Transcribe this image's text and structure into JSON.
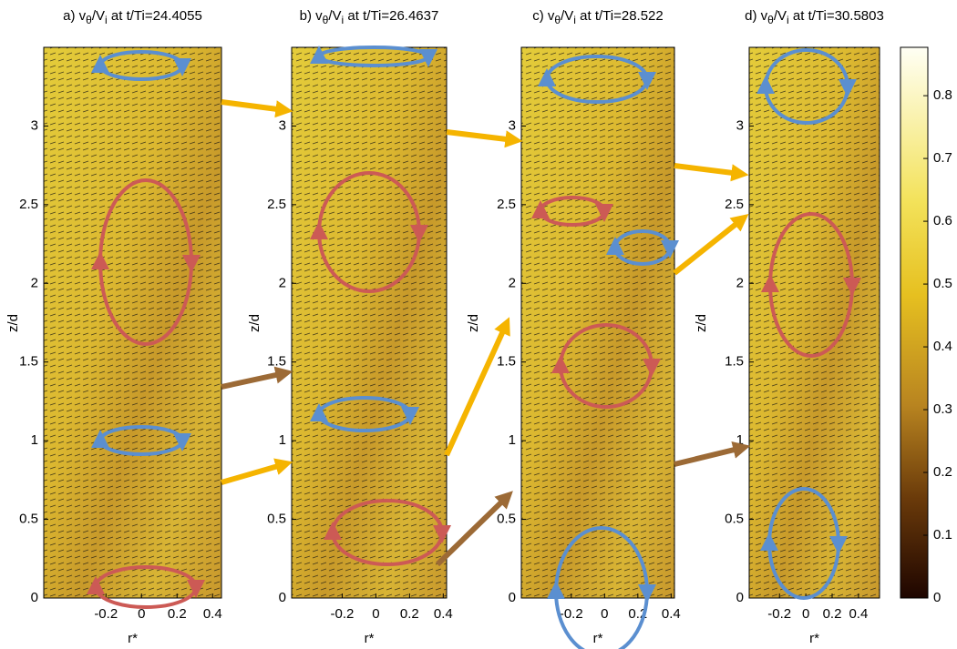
{
  "chart_data": [
    {
      "type": "heatmap",
      "title": [
        "a) v",
        "θ",
        "/V",
        "i",
        " at t/Ti=24.4055"
      ],
      "xlabel": "r*",
      "ylabel": "z/d",
      "xlim": [
        -0.55,
        0.45
      ],
      "xticks": [
        -0.2,
        0,
        0.2,
        0.4
      ],
      "ylim": [
        0,
        3.5
      ],
      "yticks": [
        0,
        0.5,
        1,
        1.5,
        2,
        2.5,
        3
      ]
    },
    {
      "type": "heatmap",
      "title": [
        "b) v",
        "θ",
        "/V",
        "i",
        " at t/Ti=26.4637"
      ],
      "xlabel": "r*",
      "ylabel": "z/d",
      "xlim": [
        -0.5,
        0.42
      ],
      "xticks": [
        -0.2,
        0,
        0.2,
        0.4
      ],
      "ylim": [
        0,
        3.5
      ],
      "yticks": [
        0,
        0.5,
        1,
        1.5,
        2,
        2.5,
        3
      ]
    },
    {
      "type": "heatmap",
      "title": [
        "c) v",
        "θ",
        "/V",
        "i",
        " at t/Ti=28.522"
      ],
      "xlabel": "r*",
      "ylabel": "z/d",
      "xlim": [
        -0.5,
        0.42
      ],
      "xticks": [
        -0.2,
        0,
        0.2,
        0.4
      ],
      "ylim": [
        0,
        3.5
      ],
      "yticks": [
        0,
        0.5,
        1,
        1.5,
        2,
        2.5,
        3
      ]
    },
    {
      "type": "heatmap",
      "title": [
        "d) v",
        "θ",
        "/V",
        "i",
        " at t/Ti=30.5803"
      ],
      "xlabel": "r*",
      "ylabel": "z/d",
      "xlim": [
        -0.43,
        0.56
      ],
      "xticks": [
        -0.2,
        0,
        0.2,
        0.4
      ],
      "ylim": [
        0,
        3.5
      ],
      "yticks": [
        0,
        0.5,
        1,
        1.5,
        2,
        2.5,
        3
      ]
    }
  ],
  "colorbar": {
    "lim": [
      0,
      0.877
    ],
    "ticks": [
      0,
      0.1,
      0.2,
      0.3,
      0.4,
      0.5,
      0.6,
      0.7,
      0.8
    ]
  }
}
